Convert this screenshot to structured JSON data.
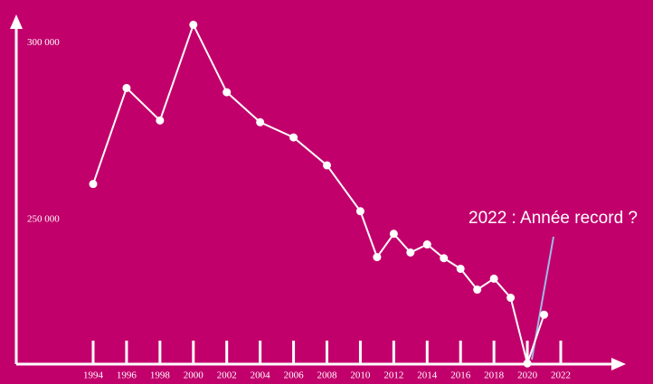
{
  "chart_data": {
    "type": "line",
    "x": [
      1994,
      1996,
      1998,
      2000,
      2002,
      2004,
      2006,
      2008,
      2010,
      2011,
      2012,
      2013,
      2014,
      2015,
      2016,
      2017,
      2018,
      2019,
      2020,
      2021
    ],
    "series": [
      {
        "name": null,
        "color": "#ffffff",
        "values": [
          260000,
          287200,
          278000,
          305100,
          286000,
          277500,
          273200,
          265300,
          252300,
          239300,
          245900,
          240600,
          242900,
          239000,
          236000,
          230100,
          233200,
          227800,
          209200,
          223000
        ]
      }
    ],
    "xlim": [
      1994,
      2022
    ],
    "xticks": [
      1994,
      1996,
      1998,
      2000,
      2002,
      2004,
      2006,
      2008,
      2010,
      2012,
      2014,
      2016,
      2018,
      2020,
      2022
    ],
    "ylim": [
      209000,
      307000
    ],
    "yticks": [
      {
        "value": 250000,
        "label": "250 000"
      },
      {
        "value": 300000,
        "label": "300 000"
      }
    ],
    "annotation": "2022 : Année record ?",
    "background": "#c2006c"
  }
}
